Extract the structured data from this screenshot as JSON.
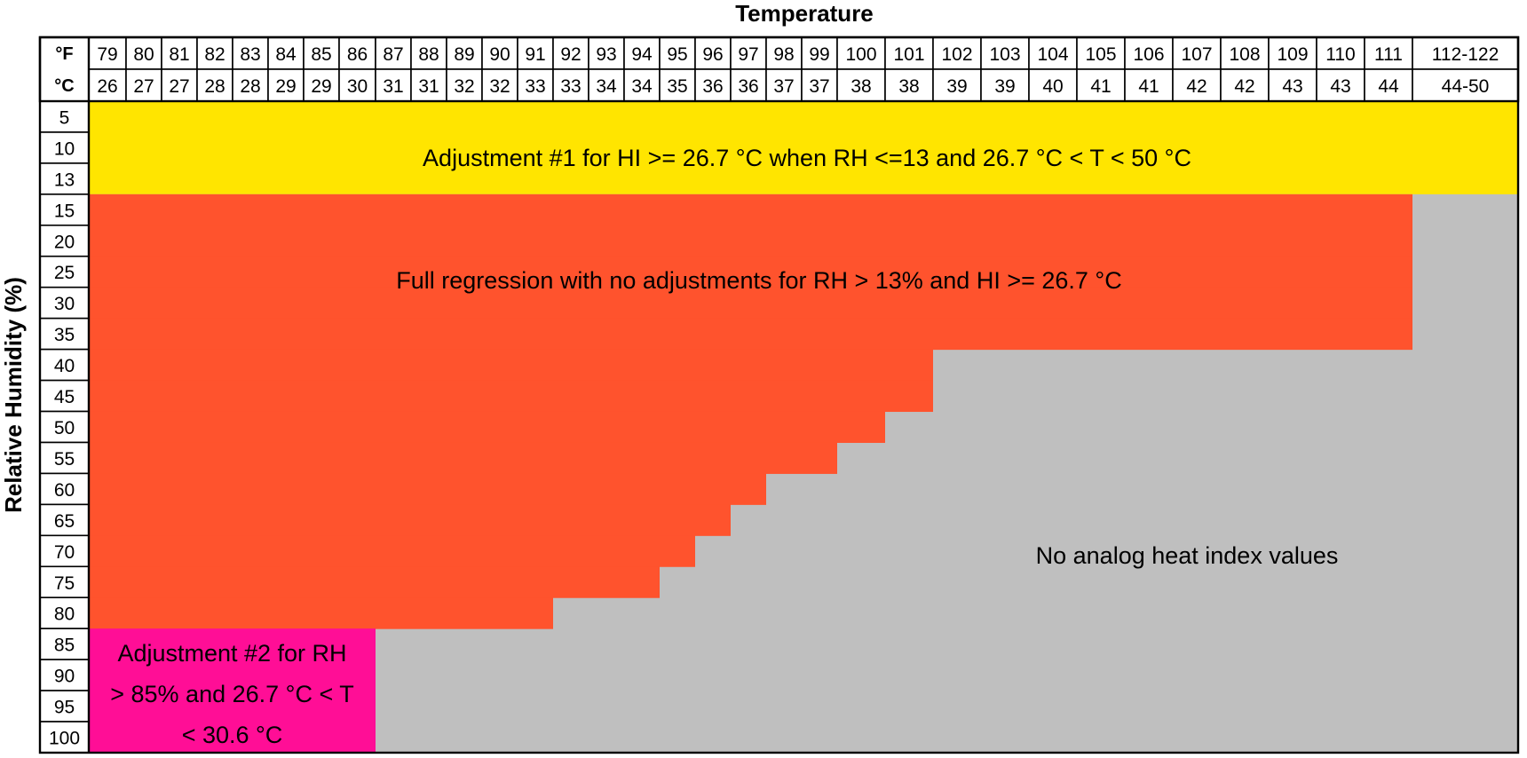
{
  "chart_data": {
    "type": "heatmap",
    "title": "Temperature",
    "ylabel": "Relative Humidity (%)",
    "fahrenheit_label": "°F",
    "celsius_label": "°C",
    "temperature_columns": [
      {
        "f": "79",
        "c": "26"
      },
      {
        "f": "80",
        "c": "27"
      },
      {
        "f": "81",
        "c": "27"
      },
      {
        "f": "82",
        "c": "28"
      },
      {
        "f": "83",
        "c": "28"
      },
      {
        "f": "84",
        "c": "29"
      },
      {
        "f": "85",
        "c": "29"
      },
      {
        "f": "86",
        "c": "30"
      },
      {
        "f": "87",
        "c": "31"
      },
      {
        "f": "88",
        "c": "31"
      },
      {
        "f": "89",
        "c": "32"
      },
      {
        "f": "90",
        "c": "32"
      },
      {
        "f": "91",
        "c": "33"
      },
      {
        "f": "92",
        "c": "33"
      },
      {
        "f": "93",
        "c": "34"
      },
      {
        "f": "94",
        "c": "34"
      },
      {
        "f": "95",
        "c": "35"
      },
      {
        "f": "96",
        "c": "36"
      },
      {
        "f": "97",
        "c": "36"
      },
      {
        "f": "98",
        "c": "37"
      },
      {
        "f": "99",
        "c": "37"
      },
      {
        "f": "100",
        "c": "38"
      },
      {
        "f": "101",
        "c": "38"
      },
      {
        "f": "102",
        "c": "39"
      },
      {
        "f": "103",
        "c": "39"
      },
      {
        "f": "104",
        "c": "40"
      },
      {
        "f": "105",
        "c": "41"
      },
      {
        "f": "106",
        "c": "41"
      },
      {
        "f": "107",
        "c": "42"
      },
      {
        "f": "108",
        "c": "42"
      },
      {
        "f": "109",
        "c": "43"
      },
      {
        "f": "110",
        "c": "43"
      },
      {
        "f": "111",
        "c": "44"
      },
      {
        "f": "112-122",
        "c": "44-50"
      }
    ],
    "humidity_rows": [
      "5",
      "10",
      "13",
      "15",
      "20",
      "25",
      "30",
      "35",
      "40",
      "45",
      "50",
      "55",
      "60",
      "65",
      "70",
      "75",
      "80",
      "85",
      "90",
      "95",
      "100"
    ],
    "regions": {
      "adjustment1": {
        "label": "Adjustment #1 for HI >= 26.7 °C when RH <=13 and 26.7 °C < T < 50 °C",
        "color": "#FFE500",
        "rh_range": [
          "5",
          "13"
        ],
        "temp_f_range": [
          "79",
          "112-122"
        ]
      },
      "full_regression": {
        "label": "Full regression with no adjustments for RH > 13% and HI >= 26.7 °C",
        "color": "#FF532D",
        "max_temp_f_by_rh": [
          {
            "rh": "15",
            "max_f": "111"
          },
          {
            "rh": "20",
            "max_f": "111"
          },
          {
            "rh": "25",
            "max_f": "111"
          },
          {
            "rh": "30",
            "max_f": "111"
          },
          {
            "rh": "35",
            "max_f": "111"
          },
          {
            "rh": "40",
            "max_f": "101"
          },
          {
            "rh": "45",
            "max_f": "101"
          },
          {
            "rh": "50",
            "max_f": "100"
          },
          {
            "rh": "55",
            "max_f": "99"
          },
          {
            "rh": "60",
            "max_f": "97"
          },
          {
            "rh": "65",
            "max_f": "96"
          },
          {
            "rh": "70",
            "max_f": "95"
          },
          {
            "rh": "75",
            "max_f": "94"
          },
          {
            "rh": "80",
            "max_f": "91"
          }
        ]
      },
      "adjustment2": {
        "label_lines": [
          "Adjustment #2 for RH",
          "> 85% and 26.7 °C < T",
          "< 30.6 °C"
        ],
        "color": "#FF0E96",
        "rh_range": [
          "85",
          "100"
        ],
        "temp_f_range": [
          "79",
          "86"
        ]
      },
      "no_analog": {
        "label": "No analog heat index values",
        "color": "#BFBFBF"
      }
    }
  }
}
